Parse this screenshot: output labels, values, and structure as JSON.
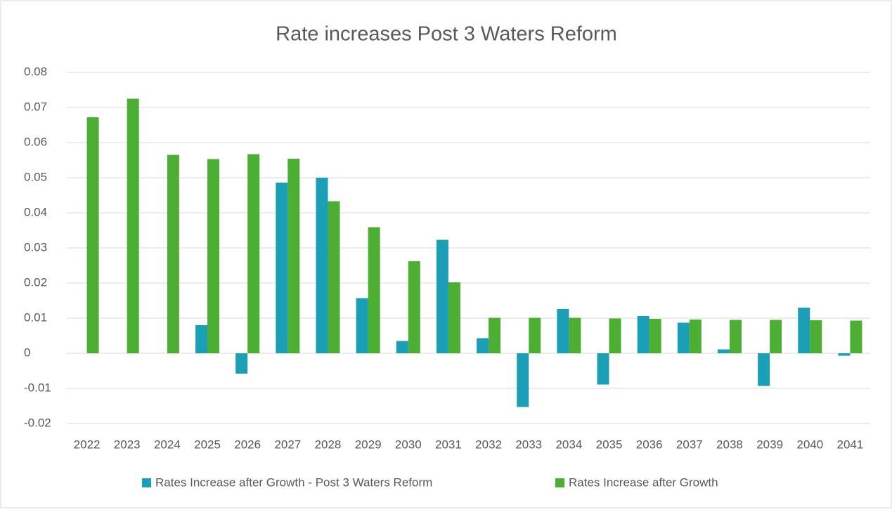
{
  "chart_data": {
    "type": "bar",
    "title": "Rate increases Post 3 Waters Reform",
    "categories": [
      "2022",
      "2023",
      "2024",
      "2025",
      "2026",
      "2027",
      "2028",
      "2029",
      "2030",
      "2031",
      "2032",
      "2033",
      "2034",
      "2035",
      "2036",
      "2037",
      "2038",
      "2039",
      "2040",
      "2041"
    ],
    "series": [
      {
        "name": "Rates Increase after Growth - Post 3 Waters Reform",
        "color": "#1a9fb6",
        "values": [
          0,
          0,
          0,
          0.008,
          -0.0058,
          0.0486,
          0.05,
          0.0157,
          0.0035,
          0.0323,
          0.0043,
          -0.0153,
          0.0126,
          -0.0089,
          0.0106,
          0.0087,
          0.0011,
          -0.0093,
          0.013,
          -0.0007
        ]
      },
      {
        "name": "Rates Increase after Growth",
        "color": "#4dae34",
        "values": [
          0.0672,
          0.0725,
          0.0565,
          0.0553,
          0.0567,
          0.0554,
          0.0433,
          0.0359,
          0.0262,
          0.0202,
          0.0101,
          0.0101,
          0.0101,
          0.0099,
          0.0098,
          0.0096,
          0.0095,
          0.0095,
          0.0094,
          0.0093
        ]
      }
    ],
    "ylim": [
      -0.02,
      0.08
    ],
    "yticks": [
      -0.02,
      -0.01,
      0,
      0.01,
      0.02,
      0.03,
      0.04,
      0.05,
      0.06,
      0.07,
      0.08
    ],
    "grid": true,
    "legend": "bottom"
  }
}
